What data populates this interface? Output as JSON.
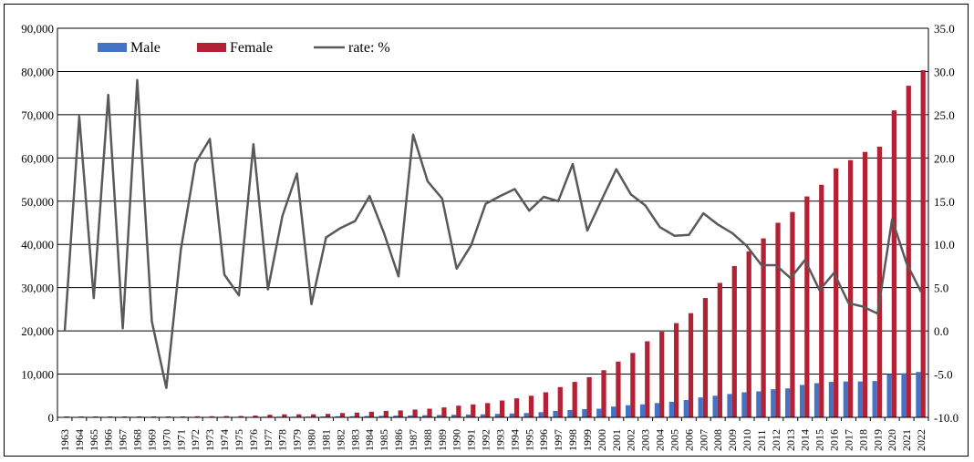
{
  "chart_data": {
    "type": "bar+line",
    "categories": [
      "1963",
      "1964",
      "1965",
      "1966",
      "1967",
      "1968",
      "1969",
      "1970",
      "1971",
      "1972",
      "1973",
      "1974",
      "1975",
      "1976",
      "1977",
      "1978",
      "1979",
      "1980",
      "1981",
      "1982",
      "1983",
      "1984",
      "1985",
      "1986",
      "1987",
      "1988",
      "1989",
      "1990",
      "1991",
      "1992",
      "1993",
      "1994",
      "1995",
      "1996",
      "1997",
      "1998",
      "1999",
      "2000",
      "2001",
      "2002",
      "2003",
      "2004",
      "2005",
      "2006",
      "2007",
      "2008",
      "2009",
      "2010",
      "2011",
      "2012",
      "2013",
      "2014",
      "2015",
      "2016",
      "2017",
      "2018",
      "2019",
      "2020",
      "2021",
      "2022"
    ],
    "series": [
      {
        "name": "Male",
        "type": "bar",
        "axis": "left",
        "color": "#4472c4",
        "values": [
          100,
          100,
          100,
          100,
          100,
          100,
          100,
          100,
          100,
          100,
          100,
          100,
          100,
          100,
          150,
          150,
          150,
          180,
          200,
          250,
          250,
          300,
          350,
          400,
          450,
          500,
          550,
          600,
          650,
          700,
          800,
          900,
          1000,
          1200,
          1500,
          1700,
          1900,
          2000,
          2500,
          2800,
          3000,
          3300,
          3600,
          4000,
          4600,
          5000,
          5400,
          5800,
          6000,
          6500,
          6700,
          7500,
          7900,
          8200,
          8300,
          8300,
          8400,
          10000,
          10200,
          10500
        ]
      },
      {
        "name": "Female",
        "type": "bar",
        "axis": "left",
        "color": "#b22234",
        "values": [
          200,
          200,
          200,
          200,
          200,
          200,
          200,
          200,
          200,
          250,
          250,
          300,
          300,
          400,
          600,
          700,
          700,
          700,
          800,
          1000,
          1100,
          1300,
          1500,
          1600,
          1800,
          2000,
          2300,
          2700,
          3000,
          3300,
          3900,
          4400,
          5000,
          5800,
          7000,
          8200,
          9300,
          10900,
          12900,
          14900,
          17600,
          19800,
          21800,
          24100,
          27600,
          31100,
          35000,
          38400,
          41400,
          45000,
          47500,
          51100,
          53800,
          57600,
          59500,
          61400,
          62600,
          71000,
          76700,
          80300
        ]
      },
      {
        "name": "rate: %",
        "type": "line",
        "axis": "right",
        "color": "#595959",
        "values": [
          0.0,
          24.8,
          3.8,
          27.3,
          0.3,
          29.0,
          1.1,
          -6.6,
          9.4,
          19.4,
          22.2,
          6.5,
          4.1,
          21.6,
          4.8,
          13.3,
          18.2,
          3.1,
          10.8,
          11.9,
          12.7,
          15.6,
          11.3,
          6.3,
          22.7,
          17.3,
          15.3,
          7.2,
          9.9,
          14.7,
          15.6,
          16.4,
          13.9,
          15.5,
          15.0,
          19.3,
          11.6,
          15.2,
          18.7,
          15.8,
          14.5,
          12.0,
          11.0,
          11.1,
          13.6,
          12.3,
          11.3,
          9.8,
          7.6,
          7.6,
          6.1,
          8.2,
          4.7,
          6.7,
          3.2,
          2.8,
          2.0,
          12.9,
          7.8,
          4.5
        ]
      }
    ],
    "y_left": {
      "lim": [
        0,
        90000
      ],
      "ticks": [
        "0",
        "10,000",
        "20,000",
        "30,000",
        "40,000",
        "50,000",
        "60,000",
        "70,000",
        "80,000",
        "90,000"
      ]
    },
    "y_right": {
      "lim": [
        -10,
        35
      ],
      "ticks": [
        "-10.0",
        "-5.0",
        "0.0",
        "5.0",
        "10.0",
        "15.0",
        "20.0",
        "25.0",
        "30.0",
        "35.0"
      ]
    },
    "legend": {
      "placement": "top-left",
      "items": [
        "Male",
        "Female",
        "rate: %"
      ]
    },
    "grid": "horizontal",
    "title": "",
    "xlabel": "",
    "ylabel": ""
  }
}
